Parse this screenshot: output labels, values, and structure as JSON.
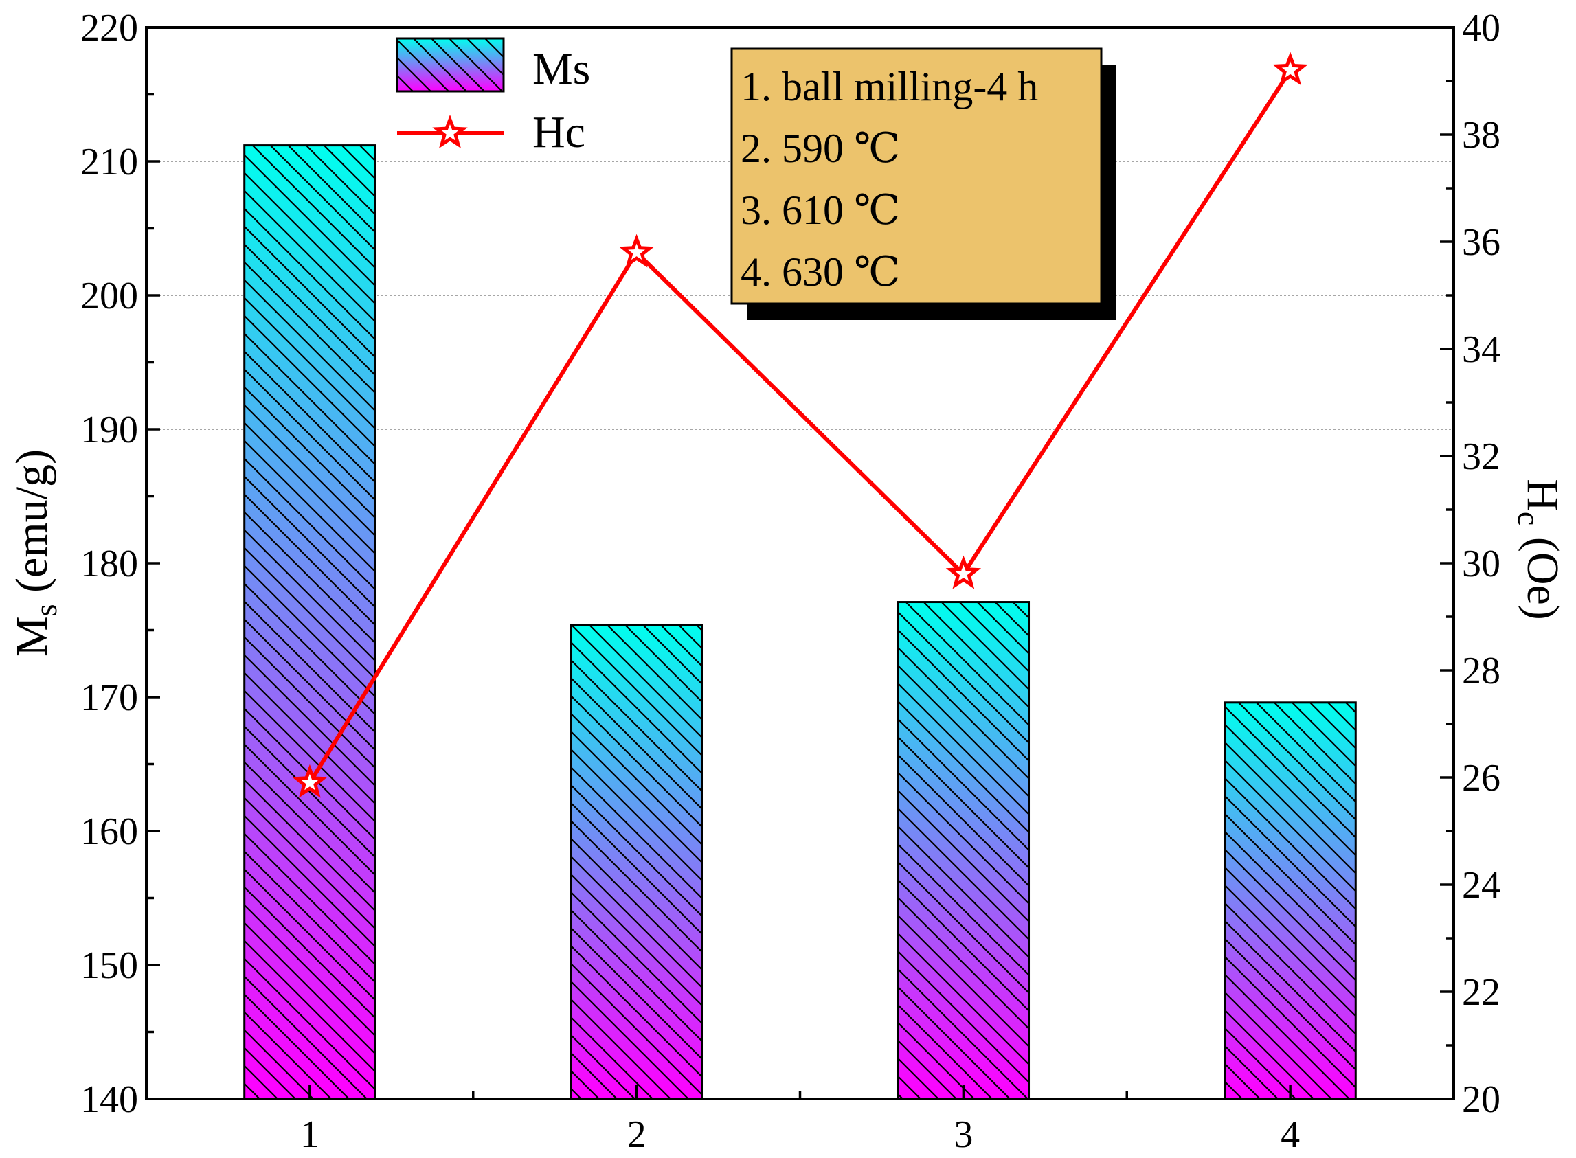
{
  "chart_data": {
    "type": "bar+line",
    "categories": [
      "1",
      "2",
      "3",
      "4"
    ],
    "series": [
      {
        "name": "Ms",
        "type": "bar",
        "axis": "left",
        "values": [
          211.2,
          175.4,
          177.1,
          169.6
        ]
      },
      {
        "name": "Hc",
        "type": "line",
        "axis": "right",
        "marker": "star",
        "values": [
          25.9,
          35.8,
          29.8,
          39.2
        ]
      }
    ],
    "y_left": {
      "label_main": "M",
      "label_sub": "s",
      "label_unit": " (emu/g)",
      "lim": [
        140,
        220
      ],
      "ticks": [
        140,
        150,
        160,
        170,
        180,
        190,
        200,
        210,
        220
      ],
      "minor_step": 5
    },
    "y_right": {
      "label_main": "H",
      "label_sub": "c",
      "label_unit": " (Oe)",
      "lim": [
        20,
        40
      ],
      "ticks": [
        20,
        22,
        24,
        26,
        28,
        30,
        32,
        34,
        36,
        38,
        40
      ],
      "minor_step": 1
    },
    "grid_y_left": [
      190,
      200,
      210
    ],
    "legend": {
      "position": "top-left",
      "entries": [
        "Ms",
        "Hc"
      ]
    },
    "annotation": {
      "position": "top-center",
      "lines": [
        "1. ball milling-4 h",
        "2. 590 ℃",
        "3. 610 ℃",
        "4. 630 ℃"
      ]
    },
    "colors": {
      "bar_top": "#00ffee",
      "bar_bottom": "#ff00ff",
      "line": "#ff0000",
      "annotation_fill": "#ecc36c",
      "annotation_shadow": "#000000",
      "grid": "#888888"
    }
  }
}
